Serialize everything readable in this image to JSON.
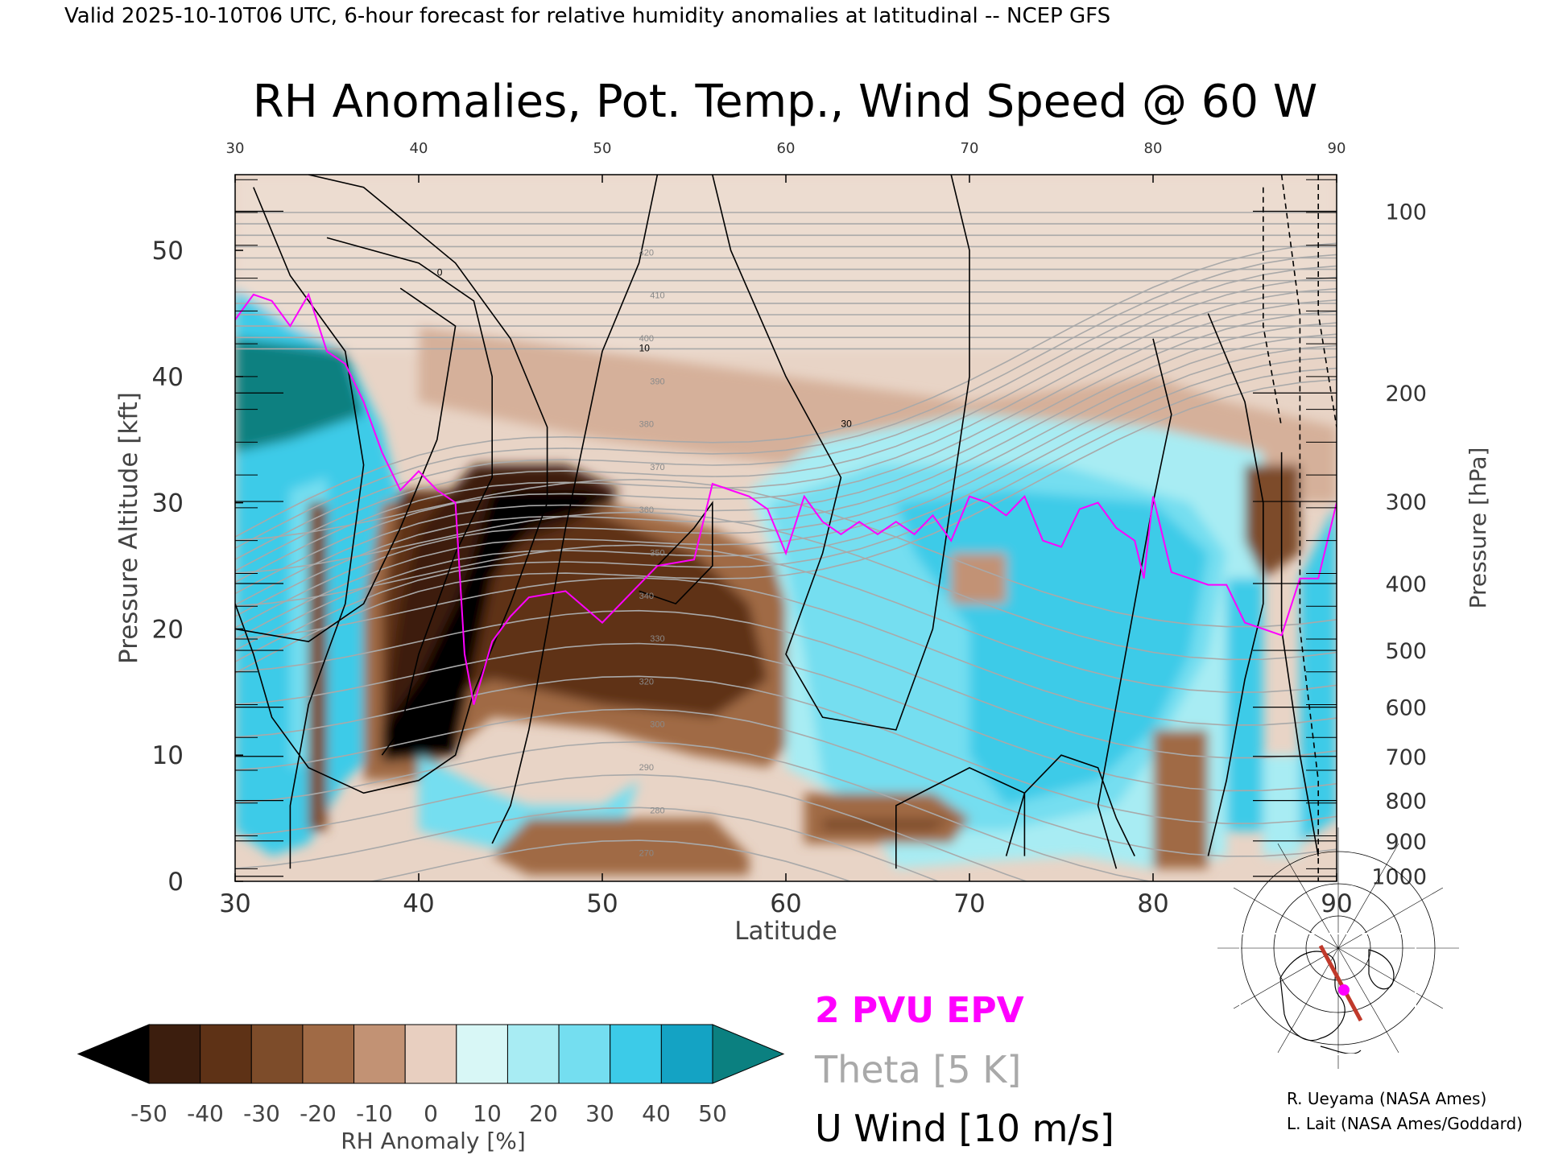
{
  "header": "Valid 2025-10-10T06 UTC, 6-hour forecast for relative humidity anomalies at latitudinal -- NCEP GFS",
  "chart_data": {
    "type": "heatmap",
    "title": "RH Anomalies, Pot. Temp., Wind Speed @ 60 W",
    "xlabel": "Latitude",
    "ylabel_left": "Pressure Altitude [kft]",
    "ylabel_right": "Pressure [hPa]",
    "xlim": [
      30,
      90
    ],
    "ylim": [
      0,
      56
    ],
    "x_ticks": [
      30,
      40,
      50,
      60,
      70,
      80,
      90
    ],
    "top_ticks": [
      30,
      40,
      50,
      60,
      70,
      80,
      90
    ],
    "y_ticks": [
      0,
      10,
      20,
      30,
      40,
      50
    ],
    "pressure_ticks": [
      {
        "label": "100",
        "kft": 53.1
      },
      {
        "label": "200",
        "kft": 38.7
      },
      {
        "label": "300",
        "kft": 30.1
      },
      {
        "label": "400",
        "kft": 23.6
      },
      {
        "label": "500",
        "kft": 18.3
      },
      {
        "label": "600",
        "kft": 13.8
      },
      {
        "label": "700",
        "kft": 9.9
      },
      {
        "label": "800",
        "kft": 6.4
      },
      {
        "label": "900",
        "kft": 3.2
      },
      {
        "label": "1000",
        "kft": 0.4
      }
    ],
    "colorbar": {
      "label": "RH Anomaly [%]",
      "tick_labels": [
        "-50",
        "-40",
        "-30",
        "-20",
        "-10",
        "0",
        "10",
        "20",
        "30",
        "40",
        "50"
      ],
      "colors": [
        "#000000",
        "#3c1e0e",
        "#5e3216",
        "#7d4c2a",
        "#a06a45",
        "#c29274",
        "#e8cfc0",
        "#d8f7f6",
        "#a8ecf3",
        "#74def0",
        "#3ccbe8",
        "#14a3c4",
        "#0b8080"
      ]
    },
    "legend": {
      "pv": {
        "label": "2 PVU EPV",
        "color": "#ff00ff"
      },
      "theta": {
        "label": "Theta [5 K]",
        "color": "#a9a9a9"
      },
      "wind": {
        "label": "U Wind [10 m/s]",
        "color": "#000000"
      }
    },
    "epv_2pvu_kft": {
      "lat": [
        30,
        31,
        32,
        33,
        34,
        35,
        36,
        37,
        38,
        39,
        40,
        41,
        42,
        42.5,
        43,
        44,
        45,
        46,
        48,
        50,
        52,
        53,
        55,
        56,
        57,
        58,
        59,
        60,
        61,
        62,
        63,
        64,
        65,
        66,
        67,
        68,
        69,
        70,
        71,
        72,
        73,
        74,
        75,
        76,
        77,
        78,
        79,
        79.5,
        80,
        81,
        82,
        83,
        84,
        85,
        86,
        87,
        88,
        89,
        90
      ],
      "kft": [
        44.5,
        46.5,
        46.0,
        44.0,
        46.5,
        42.0,
        41.0,
        38.0,
        34.0,
        31.0,
        32.5,
        31.0,
        30.0,
        18.0,
        14.0,
        19.0,
        21.0,
        22.5,
        23.0,
        20.5,
        23.5,
        25.0,
        25.5,
        31.5,
        31.0,
        30.5,
        29.5,
        26.0,
        30.5,
        28.5,
        27.5,
        28.5,
        27.5,
        28.5,
        27.5,
        29.0,
        27.0,
        30.5,
        30.0,
        29.0,
        30.5,
        27.0,
        26.5,
        29.5,
        30.0,
        28.0,
        27.0,
        24.0,
        30.5,
        24.5,
        24.0,
        23.5,
        23.5,
        20.5,
        20.0,
        19.5,
        24.0,
        24.0,
        30.0
      ]
    },
    "theta_label_values": [
      "270",
      "280",
      "290",
      "300",
      "320",
      "330",
      "340",
      "350",
      "360",
      "370",
      "380",
      "390",
      "400",
      "410",
      "420"
    ],
    "wind_label_values": [
      "0",
      "10",
      "30"
    ],
    "map_inset": {
      "section_lon": "60 W",
      "lat_range": [
        30,
        90
      ]
    }
  },
  "credits": [
    "R. Ueyama (NASA Ames)",
    "L. Lait (NASA Ames/Goddard)"
  ]
}
